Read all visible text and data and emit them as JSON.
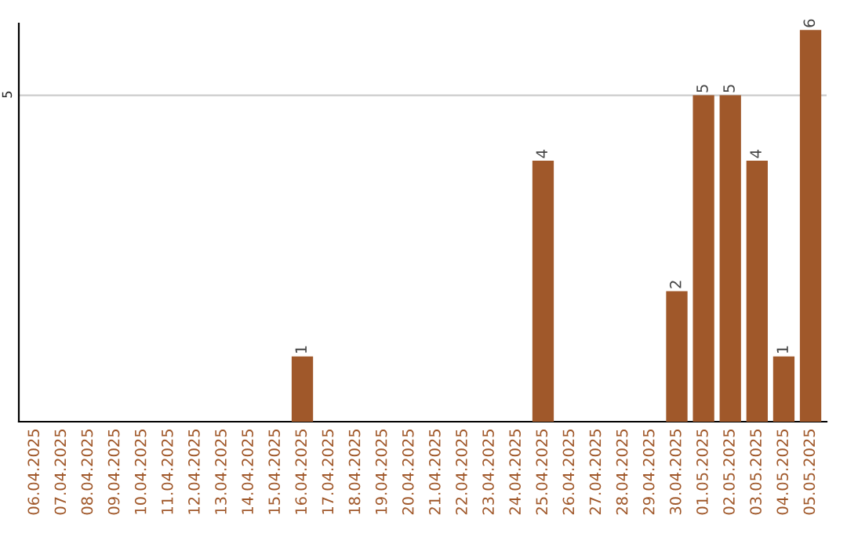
{
  "chart_data": {
    "type": "bar",
    "categories": [
      "06.04.2025",
      "07.04.2025",
      "08.04.2025",
      "09.04.2025",
      "10.04.2025",
      "11.04.2025",
      "12.04.2025",
      "13.04.2025",
      "14.04.2025",
      "15.04.2025",
      "16.04.2025",
      "17.04.2025",
      "18.04.2025",
      "19.04.2025",
      "20.04.2025",
      "21.04.2025",
      "22.04.2025",
      "23.04.2025",
      "24.04.2025",
      "25.04.2025",
      "26.04.2025",
      "27.04.2025",
      "28.04.2025",
      "29.04.2025",
      "30.04.2025",
      "01.05.2025",
      "02.05.2025",
      "03.05.2025",
      "04.05.2025",
      "05.05.2025"
    ],
    "values": [
      0,
      0,
      0,
      0,
      0,
      0,
      0,
      0,
      0,
      0,
      1,
      0,
      0,
      0,
      0,
      0,
      0,
      0,
      0,
      4,
      0,
      0,
      0,
      0,
      2,
      5,
      5,
      4,
      1,
      6
    ],
    "value_labels": [
      null,
      null,
      null,
      null,
      null,
      null,
      null,
      null,
      null,
      null,
      "1",
      null,
      null,
      null,
      null,
      null,
      null,
      null,
      null,
      "4",
      null,
      null,
      null,
      null,
      "2",
      "5",
      "5",
      "4",
      "1",
      "6"
    ],
    "color": "#a0582a",
    "ylim": [
      0,
      6.1
    ],
    "yticks": [
      5
    ],
    "grid": "y"
  }
}
